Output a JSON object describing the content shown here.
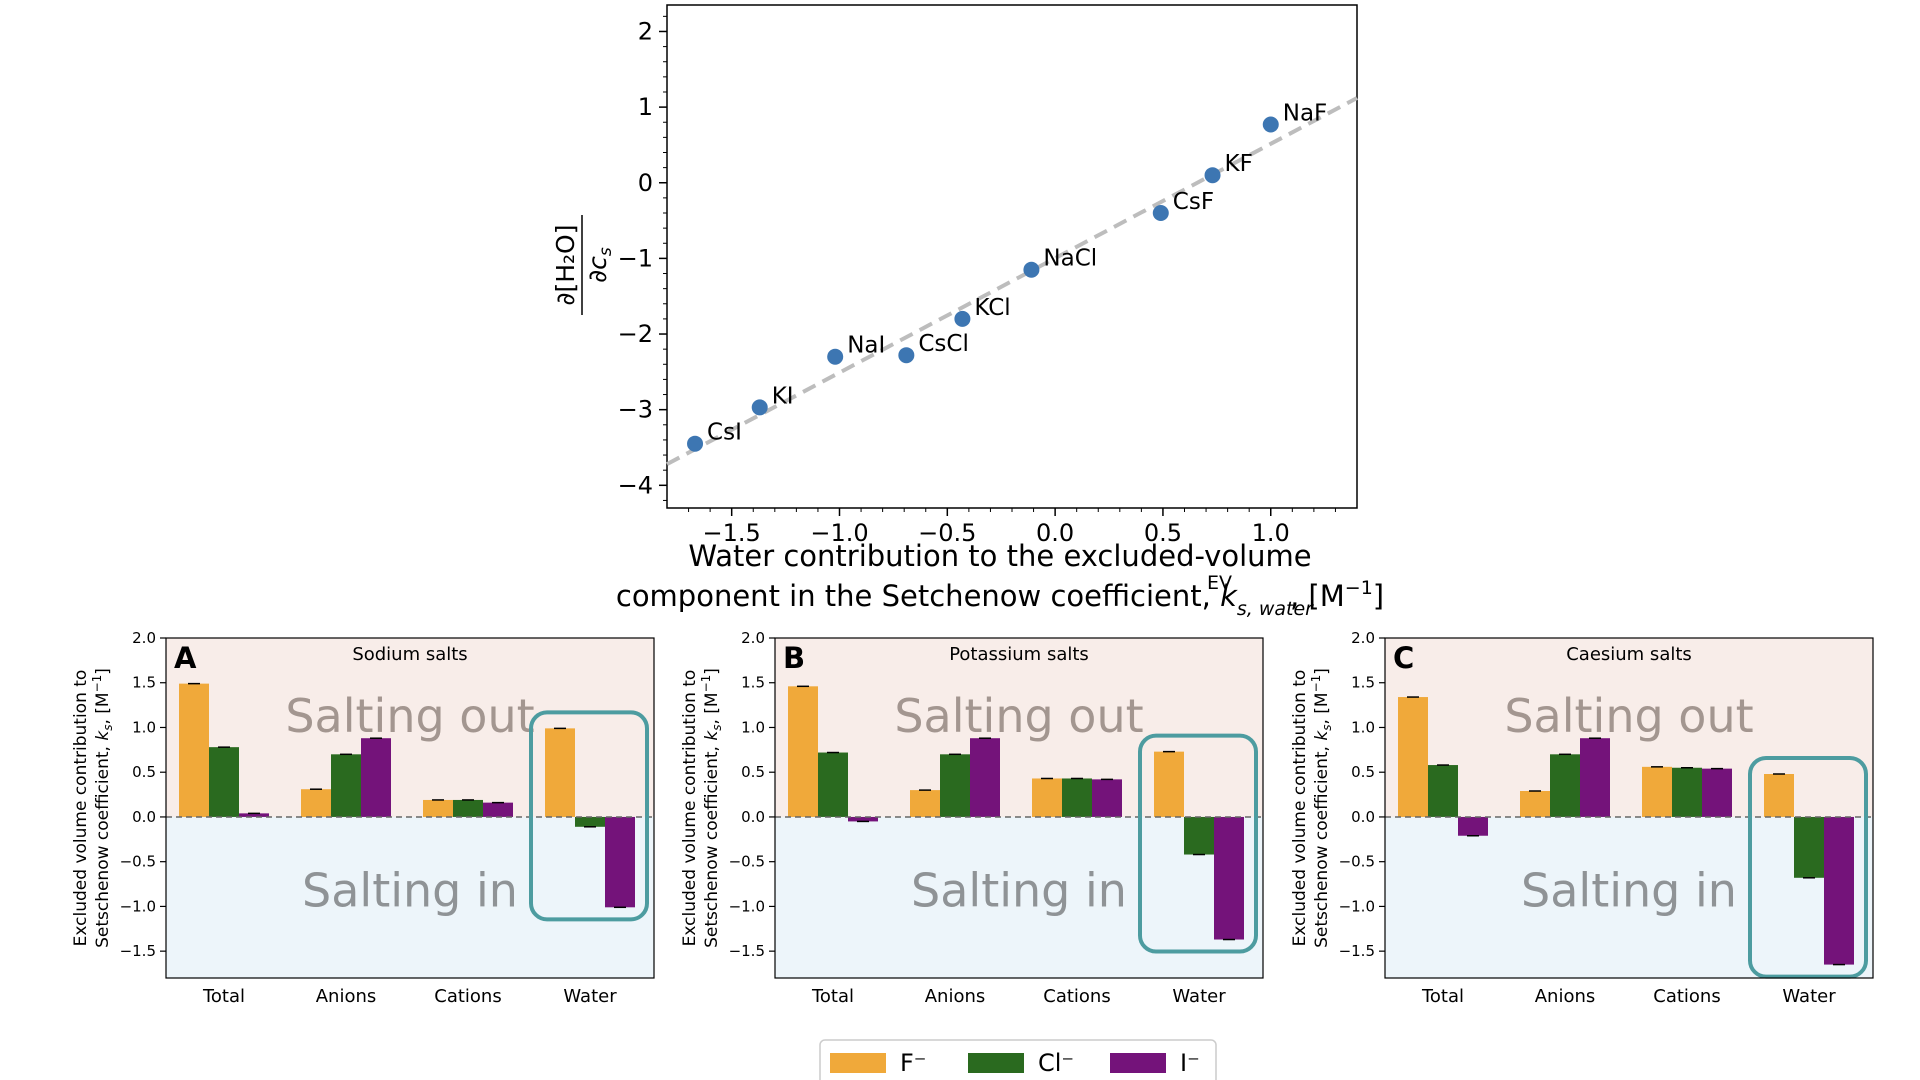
{
  "chart_data": [
    {
      "type": "scatter",
      "title": "",
      "xlabel_lines": [
        "Water contribution to the excluded-volume",
        "component in the Setchenow coefficient, "
      ],
      "xlabel_symbol": "k",
      "xlabel_sub": "s, water",
      "xlabel_sup": "EV",
      "xlabel_unit": ", [M",
      "xlabel_unit_sup": "−1",
      "xlabel_unit_end": "]",
      "ylabel_numerator": "∂[H₂O]",
      "ylabel_denominator": "∂c",
      "ylabel_denominator_sub": "s",
      "xlim": [
        -1.8,
        1.4
      ],
      "ylim": [
        -4.3,
        2.35
      ],
      "xticks": [
        -1.5,
        -1.0,
        -0.5,
        0.0,
        0.5,
        1.0
      ],
      "xtick_labels": [
        "−1.5",
        "−1.0",
        "−0.5",
        "0.0",
        "0.5",
        "1.0"
      ],
      "yticks": [
        -4,
        -3,
        -2,
        -1,
        0,
        1,
        2
      ],
      "ytick_labels": [
        "−4",
        "−3",
        "−2",
        "−1",
        "0",
        "1",
        "2"
      ],
      "marker_color": "#3d76b2",
      "fit_line_color": "#bdbdbd",
      "fit_line": {
        "x": [
          -1.8,
          1.4
        ],
        "y": [
          -3.72,
          1.12
        ]
      },
      "points": [
        {
          "label": "CsI",
          "x": -1.67,
          "y": -3.45
        },
        {
          "label": "KI",
          "x": -1.37,
          "y": -2.97
        },
        {
          "label": "NaI",
          "x": -1.02,
          "y": -2.3
        },
        {
          "label": "CsCl",
          "x": -0.69,
          "y": -2.28
        },
        {
          "label": "KCl",
          "x": -0.43,
          "y": -1.8
        },
        {
          "label": "NaCl",
          "x": -0.11,
          "y": -1.15
        },
        {
          "label": "CsF",
          "x": 0.49,
          "y": -0.4
        },
        {
          "label": "KF",
          "x": 0.73,
          "y": 0.1
        },
        {
          "label": "NaF",
          "x": 1.0,
          "y": 0.77
        }
      ]
    },
    {
      "type": "bar",
      "panel_letter": "A",
      "title": "Sodium salts",
      "categories": [
        "Total",
        "Anions",
        "Cations",
        "Water"
      ],
      "series": [
        {
          "name": "F⁻",
          "values": [
            1.49,
            0.31,
            0.19,
            0.99
          ]
        },
        {
          "name": "Cl⁻",
          "values": [
            0.78,
            0.7,
            0.19,
            -0.11
          ]
        },
        {
          "name": "I⁻",
          "values": [
            0.04,
            0.88,
            0.16,
            -1.01
          ]
        }
      ],
      "ylim": [
        -1.8,
        2.0
      ]
    },
    {
      "type": "bar",
      "panel_letter": "B",
      "title": "Potassium salts",
      "categories": [
        "Total",
        "Anions",
        "Cations",
        "Water"
      ],
      "series": [
        {
          "name": "F⁻",
          "values": [
            1.46,
            0.3,
            0.43,
            0.73
          ]
        },
        {
          "name": "Cl⁻",
          "values": [
            0.72,
            0.7,
            0.43,
            -0.42
          ]
        },
        {
          "name": "I⁻",
          "values": [
            -0.05,
            0.88,
            0.42,
            -1.37
          ]
        }
      ],
      "ylim": [
        -1.8,
        2.0
      ]
    },
    {
      "type": "bar",
      "panel_letter": "C",
      "title": "Caesium salts",
      "categories": [
        "Total",
        "Anions",
        "Cations",
        "Water"
      ],
      "series": [
        {
          "name": "F⁻",
          "values": [
            1.34,
            0.29,
            0.56,
            0.48
          ]
        },
        {
          "name": "Cl⁻",
          "values": [
            0.58,
            0.7,
            0.55,
            -0.68
          ]
        },
        {
          "name": "I⁻",
          "values": [
            -0.21,
            0.88,
            0.54,
            -1.65
          ]
        }
      ],
      "ylim": [
        -1.8,
        2.0
      ]
    }
  ],
  "bar_panels_common": {
    "yticks": [
      -1.5,
      -1.0,
      -0.5,
      0.0,
      0.5,
      1.0,
      1.5,
      2.0
    ],
    "ytick_labels": [
      "−1.5",
      "−1.0",
      "−0.5",
      "0.0",
      "0.5",
      "1.0",
      "1.5",
      "2.0"
    ],
    "ylabel_line1": "Excluded volume contribution to",
    "ylabel_line2": "Setschenow coefficient, ",
    "ylabel_symbol": "k",
    "ylabel_sub": "s",
    "ylabel_unit": ", [M",
    "ylabel_unit_sup": "−1",
    "ylabel_unit_end": "]",
    "salting_out_label": "Salting out",
    "salting_in_label": "Salting in",
    "salting_out_color": "#f8ede9",
    "salting_in_color": "#edf5fa",
    "highlight_color": "#4d9ca0",
    "series_colors": [
      "#f0a93a",
      "#2a6a1f",
      "#74137a"
    ]
  },
  "legend": {
    "position": "bottom-center",
    "entries": [
      {
        "label": "F⁻",
        "color": "#f0a93a"
      },
      {
        "label": "Cl⁻",
        "color": "#2a6a1f"
      },
      {
        "label": "I⁻",
        "color": "#74137a"
      }
    ]
  }
}
